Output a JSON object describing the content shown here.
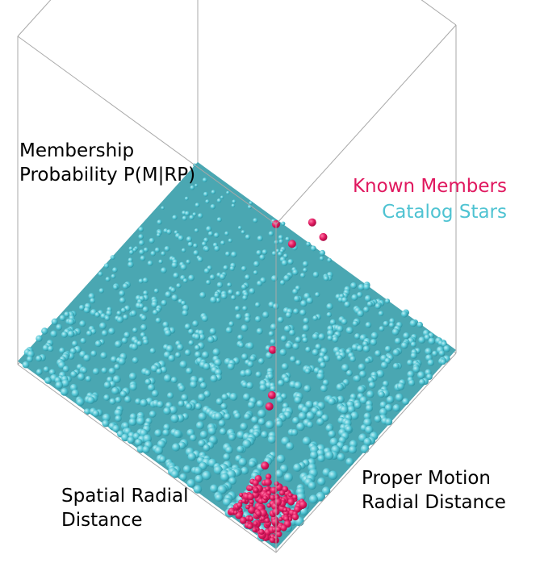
{
  "chart_data": {
    "type": "scatter",
    "projection": "3d",
    "axes": {
      "x_label_line1": "Spatial Radial",
      "x_label_line2": "Distance",
      "y_label_line1": "Proper Motion",
      "y_label_line2": "Radial Distance",
      "z_label_line1": "Membership",
      "z_label_line2": "Probability P(M|RP)",
      "x_range": [
        0,
        1
      ],
      "y_range": [
        0,
        1
      ],
      "z_range": [
        0,
        1
      ]
    },
    "grid": false,
    "legend_placement": "top-right",
    "series": [
      {
        "name": "Known Members",
        "color": "#e0185f",
        "points_xyz": [
          [
            0.0,
            0.0,
            1.0
          ],
          [
            0.02,
            0.01,
            0.6
          ],
          [
            0.03,
            0.02,
            0.45
          ],
          [
            0.04,
            0.02,
            0.41
          ],
          [
            0.05,
            0.01,
            0.23
          ],
          [
            0.5,
            0.98,
            0.08
          ],
          [
            0.55,
            0.99,
            0.09
          ],
          [
            0.6,
            0.95,
            0.02
          ]
        ],
        "cluster": {
          "center": [
            0.07,
            0.06,
            0.02
          ],
          "spread": [
            0.09,
            0.1,
            0.01
          ],
          "count": 160
        }
      },
      {
        "name": "Catalog Stars",
        "color": "#4fc3d2",
        "sheet": {
          "z": 0.01,
          "x_range": [
            0,
            1
          ],
          "y_range": [
            0,
            1
          ]
        }
      }
    ]
  }
}
